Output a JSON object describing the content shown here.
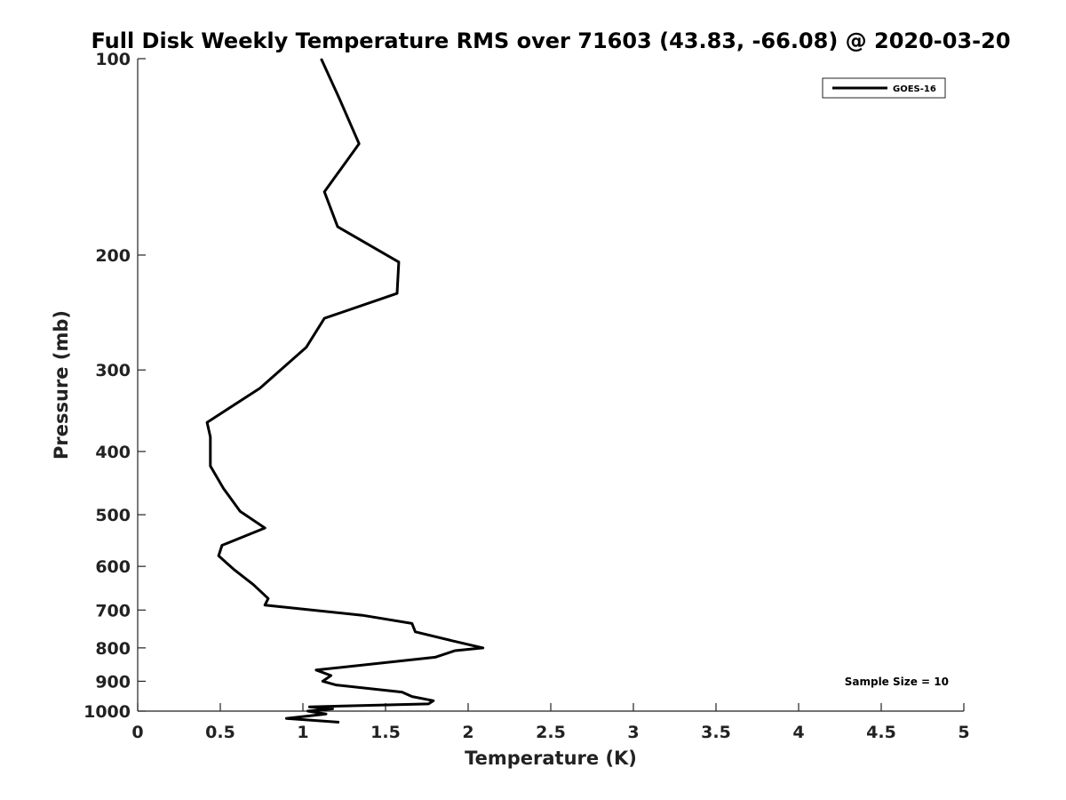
{
  "chart_data": {
    "type": "line",
    "title": "Full Disk Weekly Temperature RMS over 71603 (43.83, -66.08) @ 2020-03-20",
    "xlabel": "Temperature (K)",
    "ylabel": "Pressure (mb)",
    "xlim": [
      0,
      5
    ],
    "ylim": [
      100,
      1000
    ],
    "y_scale": "log",
    "y_inverted": true,
    "x_ticks": [
      "0",
      "0.5",
      "1",
      "1.5",
      "2",
      "2.5",
      "3",
      "3.5",
      "4",
      "4.5",
      "5"
    ],
    "x_tick_values": [
      0,
      0.5,
      1,
      1.5,
      2,
      2.5,
      3,
      3.5,
      4,
      4.5,
      5
    ],
    "y_ticks": [
      "100",
      "200",
      "300",
      "400",
      "500",
      "600",
      "700",
      "800",
      "900",
      "1000"
    ],
    "y_tick_values": [
      100,
      200,
      300,
      400,
      500,
      600,
      700,
      800,
      900,
      1000
    ],
    "grid": false,
    "legend_position": "top-right",
    "annotation": "Sample Size = 10",
    "series": [
      {
        "name": "GOES-16",
        "color": "#000000",
        "points": [
          [
            1.11,
            100
          ],
          [
            1.22,
            115
          ],
          [
            1.34,
            135
          ],
          [
            1.13,
            160
          ],
          [
            1.21,
            181
          ],
          [
            1.58,
            205
          ],
          [
            1.57,
            229
          ],
          [
            1.13,
            250
          ],
          [
            1.02,
            277
          ],
          [
            0.74,
            320
          ],
          [
            0.42,
            361
          ],
          [
            0.44,
            380
          ],
          [
            0.44,
            421
          ],
          [
            0.52,
            456
          ],
          [
            0.62,
            494
          ],
          [
            0.77,
            524
          ],
          [
            0.51,
            557
          ],
          [
            0.49,
            578
          ],
          [
            0.58,
            606
          ],
          [
            0.7,
            640
          ],
          [
            0.79,
            672
          ],
          [
            0.77,
            688
          ],
          [
            1.36,
            713
          ],
          [
            1.66,
            734
          ],
          [
            1.68,
            756
          ],
          [
            1.92,
            782
          ],
          [
            2.09,
            800
          ],
          [
            1.92,
            808
          ],
          [
            1.8,
            827
          ],
          [
            1.08,
            865
          ],
          [
            1.17,
            882
          ],
          [
            1.12,
            900
          ],
          [
            1.2,
            912
          ],
          [
            1.6,
            935
          ],
          [
            1.66,
            950
          ],
          [
            1.79,
            964
          ],
          [
            1.76,
            975
          ],
          [
            1.04,
            985
          ],
          [
            1.18,
            992
          ],
          [
            1.03,
            1000
          ],
          [
            1.14,
            1010
          ],
          [
            0.9,
            1026
          ],
          [
            1.22,
            1040
          ]
        ]
      }
    ]
  }
}
